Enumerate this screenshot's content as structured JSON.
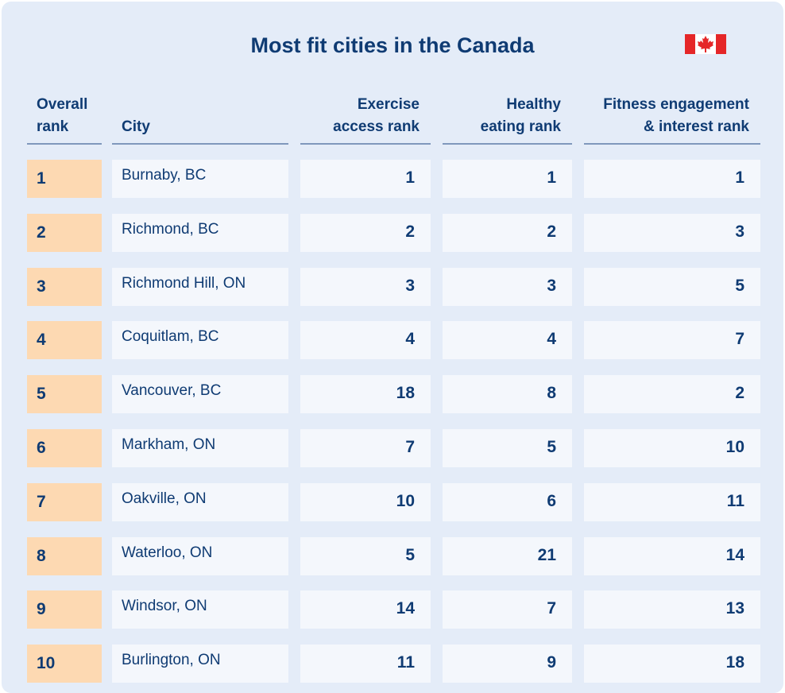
{
  "chart_data": {
    "type": "table",
    "title": "Most fit cities in the Canada",
    "columns": [
      {
        "key": "rank",
        "label_lines": [
          "Overall",
          "rank"
        ]
      },
      {
        "key": "city",
        "label_lines": [
          "City"
        ]
      },
      {
        "key": "exercise",
        "label_lines": [
          "Exercise",
          "access rank"
        ]
      },
      {
        "key": "eating",
        "label_lines": [
          "Healthy",
          "eating rank"
        ]
      },
      {
        "key": "fitness",
        "label_lines": [
          "Fitness engagement",
          "& interest rank"
        ]
      }
    ],
    "rows": [
      {
        "rank": "1",
        "city": "Burnaby, BC",
        "exercise": "1",
        "eating": "1",
        "fitness": "1"
      },
      {
        "rank": "2",
        "city": "Richmond, BC",
        "exercise": "2",
        "eating": "2",
        "fitness": "3"
      },
      {
        "rank": "3",
        "city": "Richmond Hill, ON",
        "exercise": "3",
        "eating": "3",
        "fitness": "5"
      },
      {
        "rank": "4",
        "city": "Coquitlam, BC",
        "exercise": "4",
        "eating": "4",
        "fitness": "7"
      },
      {
        "rank": "5",
        "city": "Vancouver, BC",
        "exercise": "18",
        "eating": "8",
        "fitness": "2"
      },
      {
        "rank": "6",
        "city": "Markham, ON",
        "exercise": "7",
        "eating": "5",
        "fitness": "10"
      },
      {
        "rank": "7",
        "city": "Oakville, ON",
        "exercise": "10",
        "eating": "6",
        "fitness": "11"
      },
      {
        "rank": "8",
        "city": "Waterloo, ON",
        "exercise": "5",
        "eating": "21",
        "fitness": "14"
      },
      {
        "rank": "9",
        "city": "Windsor, ON",
        "exercise": "14",
        "eating": "7",
        "fitness": "13"
      },
      {
        "rank": "10",
        "city": "Burlington, ON",
        "exercise": "11",
        "eating": "9",
        "fitness": "18"
      }
    ]
  },
  "flag": {
    "icon": "canada-flag-icon",
    "colors": [
      "#e52628",
      "#ffffff"
    ]
  },
  "colors": {
    "title": "#0f3b73",
    "rank_cell": "#fdd9b2",
    "cell": "#f4f7fc",
    "background": "#e4ecf8"
  }
}
